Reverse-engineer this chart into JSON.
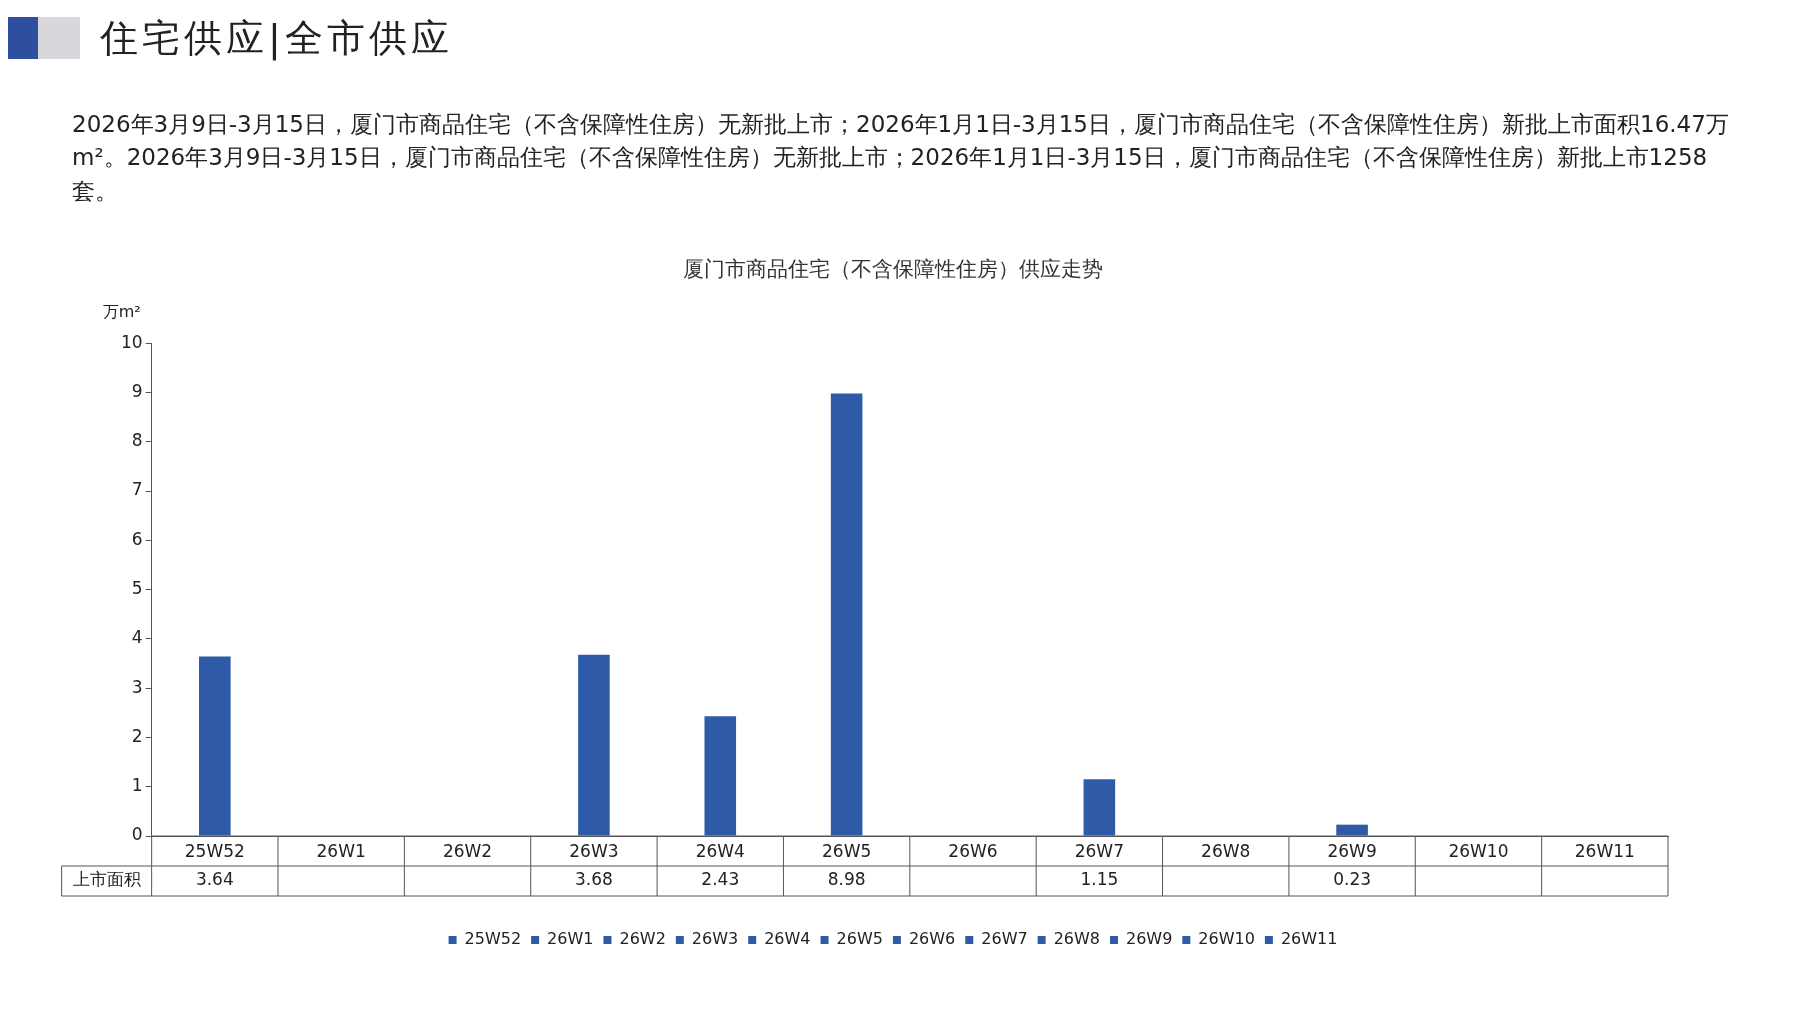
{
  "chart_data": {
    "type": "bar",
    "title": "住宅供应|全市供应",
    "subtitle": "2026年3月9日-3月15日，厦门市商品住宅（不含保障性住房）无新批上市；2026年1月1日-3月15日，厦门市商品住宅（不含保障性住房）新批上市面积16.47万m²。2026年3月9日-3月15日，厦门市商品住宅（不含保障性住房）无新批上市；2026年1月1日-3月15日，厦门市商品住宅（不含保障性住房）新批上市1258套。",
    "annotations": [
      "厦门市商品住宅（不含保障性住房）供应走势",
      "上市面积"
    ],
    "ylabel": "万m²",
    "categories": [
      "25W52",
      "26W1",
      "26W2",
      "26W3",
      "26W4",
      "26W5",
      "26W6",
      "26W7",
      "26W8",
      "26W9",
      "26W10",
      "26W11"
    ],
    "series": [
      {
        "name": "25W52",
        "color": "#2e5aa8",
        "values": [
          3.64,
          null,
          null,
          null,
          null,
          null,
          null,
          null,
          null,
          null,
          null,
          null
        ]
      },
      {
        "name": "26W1",
        "color": "#2e5aa8",
        "values": [
          null,
          null,
          null,
          null,
          null,
          null,
          null,
          null,
          null,
          null,
          null,
          null
        ]
      },
      {
        "name": "26W2",
        "color": "#2e5aa8",
        "values": [
          null,
          null,
          null,
          null,
          null,
          null,
          null,
          null,
          null,
          null,
          null,
          null
        ]
      },
      {
        "name": "26W3",
        "color": "#2e5aa8",
        "values": [
          null,
          null,
          null,
          3.68,
          null,
          null,
          null,
          null,
          null,
          null,
          null,
          null
        ]
      },
      {
        "name": "26W4",
        "color": "#2e5aa8",
        "values": [
          null,
          null,
          null,
          null,
          2.43,
          null,
          null,
          null,
          null,
          null,
          null,
          null
        ]
      },
      {
        "name": "26W5",
        "color": "#2e5aa8",
        "values": [
          null,
          null,
          null,
          null,
          null,
          8.98,
          null,
          null,
          null,
          null,
          null,
          null
        ]
      },
      {
        "name": "26W6",
        "color": "#2e5aa8",
        "values": [
          null,
          null,
          null,
          null,
          null,
          null,
          null,
          null,
          null,
          null,
          null,
          null
        ]
      },
      {
        "name": "26W7",
        "color": "#2e5aa8",
        "values": [
          null,
          null,
          null,
          null,
          null,
          null,
          null,
          1.15,
          null,
          null,
          null,
          null
        ]
      },
      {
        "name": "26W8",
        "color": "#2e5aa8",
        "values": [
          null,
          null,
          null,
          null,
          null,
          null,
          null,
          null,
          null,
          null,
          null,
          null
        ]
      },
      {
        "name": "26W9",
        "color": "#2e5aa8",
        "values": [
          null,
          null,
          null,
          null,
          null,
          null,
          null,
          null,
          null,
          0.23,
          null,
          null
        ]
      },
      {
        "name": "26W10",
        "color": "#2e5aa8",
        "values": [
          null,
          null,
          null,
          null,
          null,
          null,
          null,
          null,
          null,
          null,
          null,
          null
        ]
      },
      {
        "name": "26W11",
        "color": "#2e5aa8",
        "values": [
          null,
          null,
          null,
          null,
          null,
          null,
          null,
          null,
          null,
          null,
          null,
          null
        ]
      }
    ],
    "ylim": [
      0,
      10
    ],
    "yticks": [
      0,
      1,
      2,
      3,
      4,
      5,
      6,
      7,
      8,
      9,
      10
    ],
    "data_labels": true,
    "legend": "bottom"
  }
}
